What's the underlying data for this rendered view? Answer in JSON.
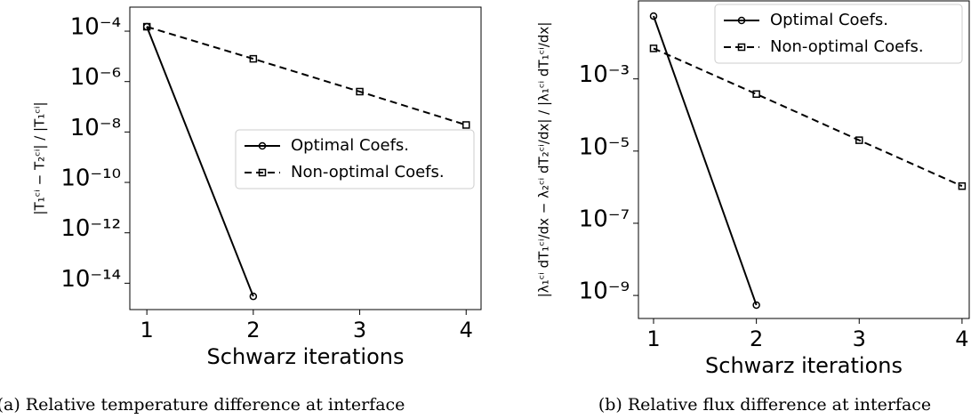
{
  "chart_data": [
    {
      "type": "line",
      "caption": "(a) Relative temperature difference at interface",
      "xlabel": "Schwarz iterations",
      "ylabel": "|T₁ᶜⁱ − T₂ᶜⁱ| / |T₁ᶜⁱ|",
      "x": [
        1,
        2,
        3,
        4
      ],
      "log_y": true,
      "legend": "center right",
      "xlim": [
        0.84,
        4.14
      ],
      "xticks": [
        1,
        2,
        3,
        4
      ],
      "ylim": [
        0.0009,
        9e-16
      ],
      "yticks": [
        {
          "value": 0.0001,
          "label": "10⁻⁴"
        },
        {
          "value": 1e-06,
          "label": "10⁻⁶"
        },
        {
          "value": 1e-08,
          "label": "10⁻⁸"
        },
        {
          "value": 1e-10,
          "label": "10⁻¹⁰"
        },
        {
          "value": 1e-12,
          "label": "10⁻¹²"
        },
        {
          "value": 1e-14,
          "label": "10⁻¹⁴"
        }
      ],
      "series": [
        {
          "name": "Optimal Coefs.",
          "color": "#000000",
          "linestyle": "solid",
          "marker": "circle",
          "values": [
            0.00015,
            3e-15,
            null,
            null
          ]
        },
        {
          "name": "Non-optimal Coefs.",
          "color": "#000000",
          "linestyle": "dashed",
          "marker": "square",
          "values": [
            0.00015,
            8e-06,
            4e-07,
            1.9e-08
          ]
        }
      ]
    },
    {
      "type": "line",
      "caption": "(b) Relative flux difference at interface",
      "xlabel": "Schwarz iterations",
      "ylabel": "|λ₁ᶜⁱ dT₁ᶜⁱ/dx − λ₂ᶜⁱ dT₂ᶜⁱ/dx| / |λ₁ᶜⁱ dT₁ᶜⁱ/dx|",
      "x": [
        1,
        2,
        3,
        4
      ],
      "log_y": true,
      "legend": "upper right",
      "xlim": [
        0.853,
        4.07
      ],
      "xticks": [
        1,
        2,
        3,
        4
      ],
      "ylim": [
        0.145,
        2.3e-10
      ],
      "yticks": [
        {
          "value": 0.001,
          "label": "10⁻³"
        },
        {
          "value": 1e-05,
          "label": "10⁻⁵"
        },
        {
          "value": 1e-07,
          "label": "10⁻⁷"
        },
        {
          "value": 1e-09,
          "label": "10⁻⁹"
        }
      ],
      "series": [
        {
          "name": "Optimal Coefs.",
          "color": "#000000",
          "linestyle": "solid",
          "marker": "circle",
          "values": [
            0.055,
            5.4e-10,
            null,
            null
          ]
        },
        {
          "name": "Non-optimal Coefs.",
          "color": "#000000",
          "linestyle": "dashed",
          "marker": "square",
          "values": [
            0.007,
            0.00038,
            2e-05,
            1.07e-06
          ]
        }
      ]
    }
  ]
}
